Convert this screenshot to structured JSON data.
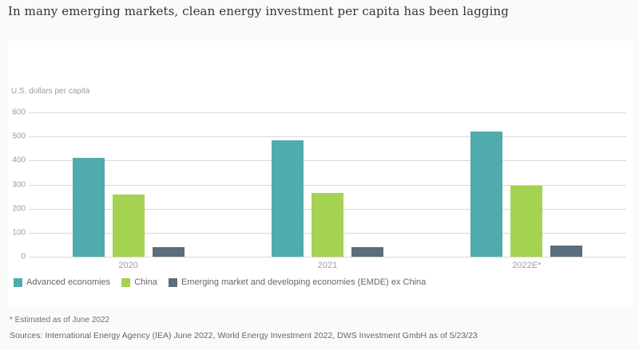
{
  "title": "In many emerging markets, clean energy investment per capita has been lagging",
  "footnote": "* Estimated as of June 2022",
  "sources": "Sources: International Energy Agency (IEA) June 2022, World Energy Investment 2022, DWS Investment GmbH as of 5/23/23",
  "colors": {
    "advanced_economies": "#4fabad",
    "china": "#a4d253",
    "emde_ex_china": "#5a6e7b",
    "gridline": "#d8d8d8",
    "card_background": "#ffffff",
    "page_background": "#fafaf9"
  },
  "chart_data": {
    "type": "bar",
    "title": "",
    "y_axis_title": "U.S. dollars per capita",
    "xlabel": "",
    "ylabel": "U.S. dollars per capita",
    "categories": [
      "2020",
      "2021",
      "2022E*"
    ],
    "series": [
      {
        "name": "Advanced economies",
        "color": "#4fabad",
        "values": [
          410,
          485,
          520
        ]
      },
      {
        "name": "China",
        "color": "#a4d253",
        "values": [
          260,
          265,
          295
        ]
      },
      {
        "name": "Emerging market and developing economies (EMDE) ex China",
        "color": "#5a6e7b",
        "values": [
          40,
          40,
          45
        ]
      }
    ],
    "ylim": [
      0,
      600
    ],
    "yticks": [
      0,
      100,
      200,
      300,
      400,
      500,
      600
    ],
    "grid": true,
    "legend_position": "bottom-left"
  }
}
